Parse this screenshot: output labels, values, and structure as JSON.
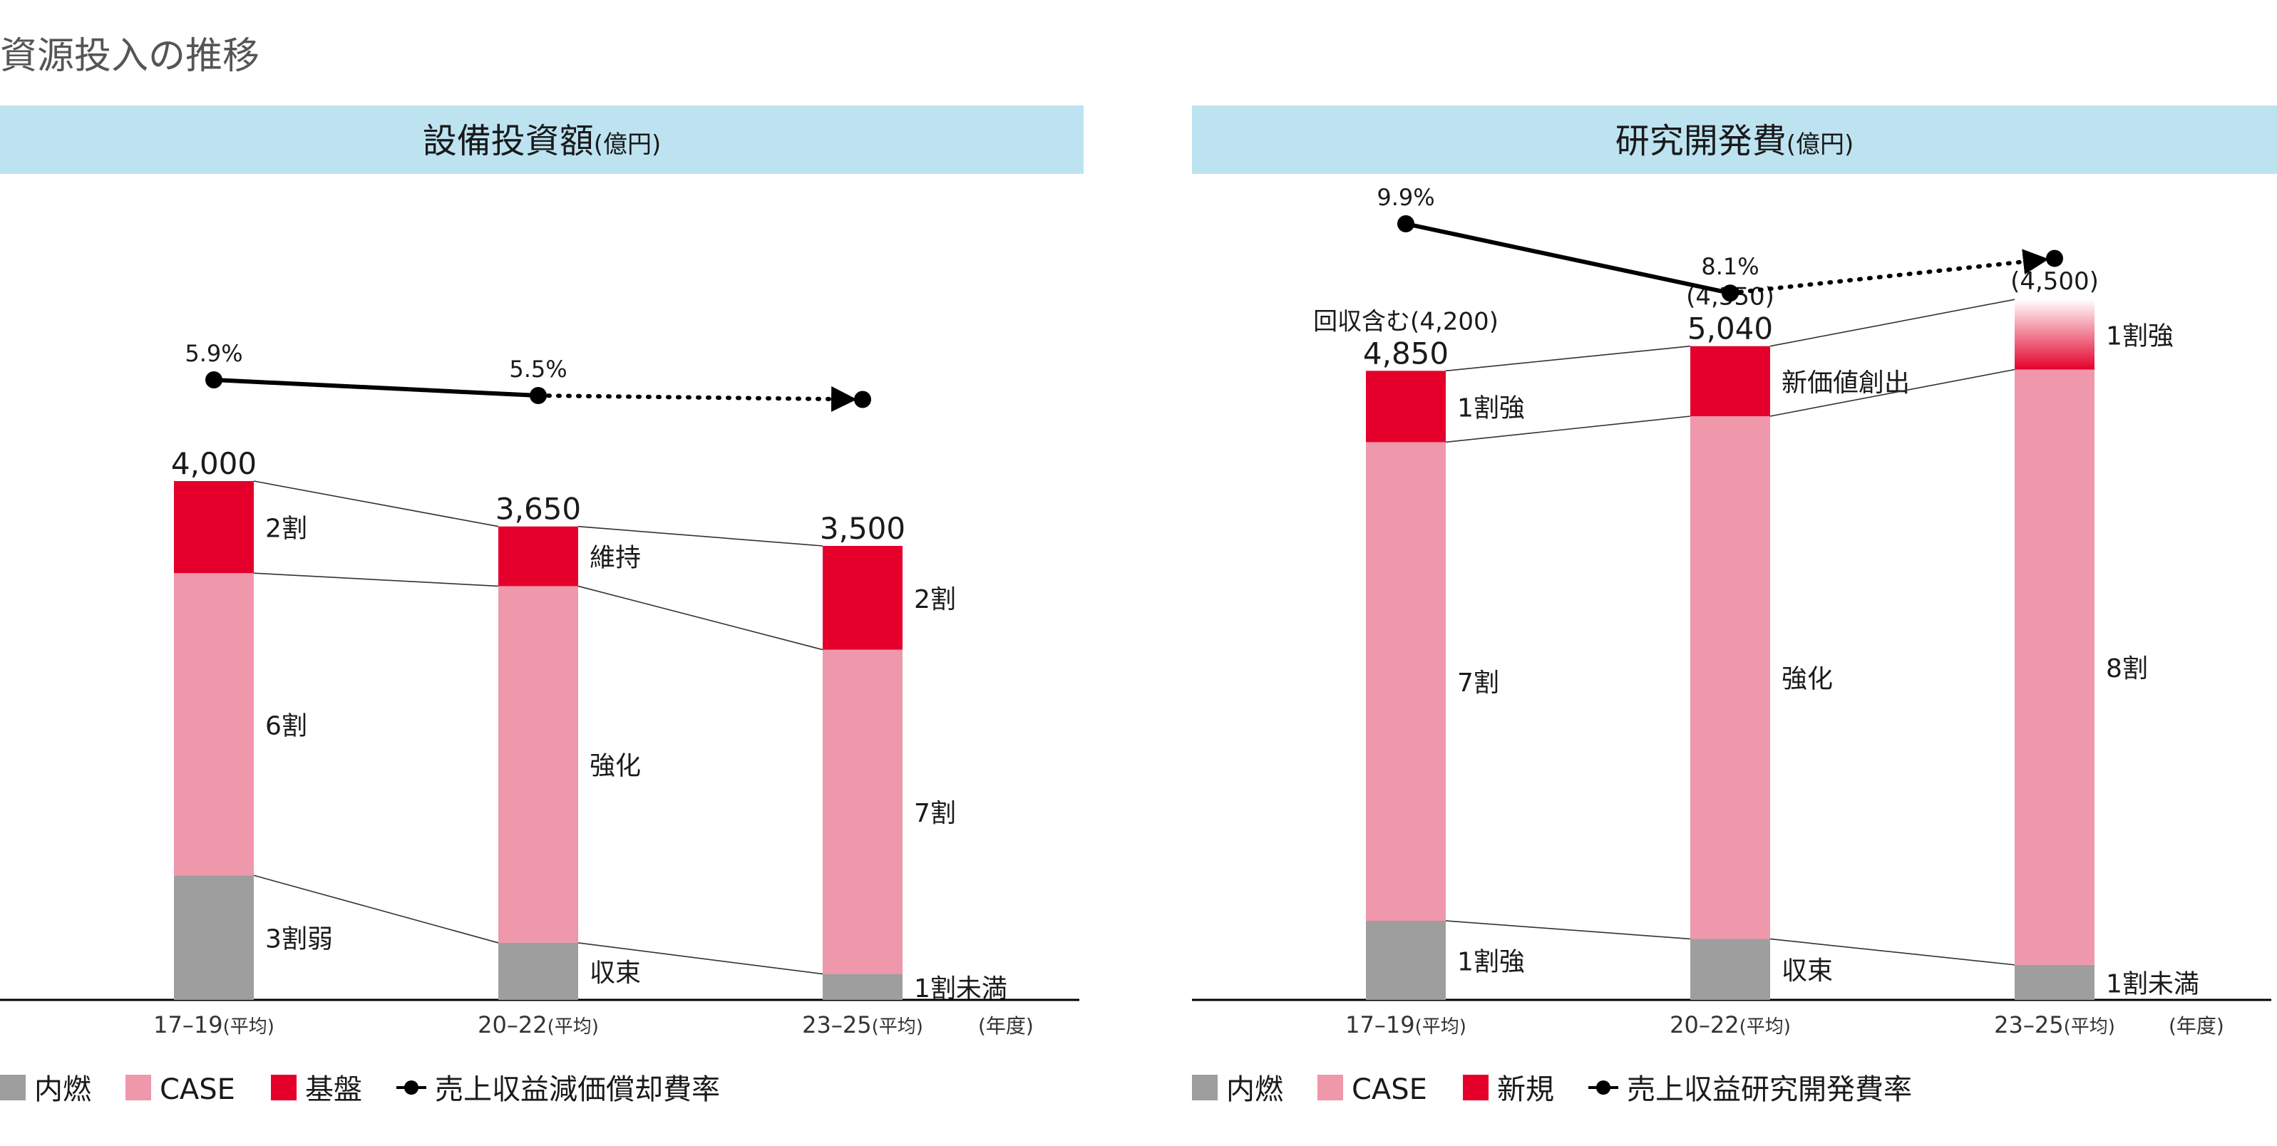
{
  "page_title": "資源投入の推移",
  "colors": {
    "header_bg": "#bde3f1",
    "engine": "#9e9e9e",
    "case": "#ef97ab",
    "base": "#e4002b",
    "line": "#000000"
  },
  "chart_data": [
    {
      "type": "bar",
      "title": "設備投資額",
      "unit": "(億円)",
      "year_label": "(年度)",
      "categories": [
        "17–19(平均)",
        "20–22(平均)",
        "23–25(平均)"
      ],
      "totals": [
        "4,000",
        "3,650",
        "3,500"
      ],
      "total_values": [
        4000,
        3650,
        3500
      ],
      "sub_totals": [
        "",
        "",
        ""
      ],
      "series": [
        {
          "name": "内燃",
          "values": [
            960,
            440,
            200
          ],
          "labels": [
            "3割弱",
            "収束",
            "1割未満"
          ]
        },
        {
          "name": "CASE",
          "values": [
            2330,
            2750,
            2500
          ],
          "labels": [
            "6割",
            "強化",
            "7割"
          ]
        },
        {
          "name": "基盤",
          "values": [
            710,
            460,
            800
          ],
          "labels": [
            "2割",
            "維持",
            "2割"
          ]
        }
      ],
      "line": {
        "name": "売上収益減価償却費率",
        "values": [
          5.9,
          5.5,
          null
        ],
        "labels": [
          "5.9%",
          "5.5%",
          ""
        ],
        "style": [
          "solid",
          "dotted"
        ],
        "last_point_level": 5.4
      },
      "legend": [
        "内燃",
        "CASE",
        "基盤",
        "売上収益減価償却費率"
      ],
      "legend_position": "bottom-left"
    },
    {
      "type": "bar",
      "title": "研究開発費",
      "unit": "(億円)",
      "year_label": "(年度)",
      "categories": [
        "17–19(平均)",
        "20–22(平均)",
        "23–25(平均)"
      ],
      "totals": [
        "4,850",
        "5,040",
        ""
      ],
      "total_values": [
        4850,
        5040,
        5400
      ],
      "sub_totals": [
        "回収含む(4,200)",
        "(4,350)",
        "(4,500)"
      ],
      "series": [
        {
          "name": "内燃",
          "values": [
            610,
            470,
            270
          ],
          "labels": [
            "1割強",
            "収束",
            "1割未満"
          ]
        },
        {
          "name": "新規",
          "values": [
            550,
            540,
            540
          ],
          "labels": [
            "1割強",
            "新価値創出",
            "1割強"
          ]
        },
        {
          "name": "CASE",
          "values": [
            3690,
            4030,
            4590
          ],
          "labels": [
            "7割",
            "強化",
            "8割"
          ]
        }
      ],
      "line": {
        "name": "売上収益研究開発費率",
        "values": [
          9.9,
          8.1,
          null
        ],
        "labels": [
          "9.9%",
          "8.1%",
          ""
        ],
        "style": [
          "solid",
          "dotted"
        ],
        "last_point_level": 9.0
      },
      "legend": [
        "内燃",
        "CASE",
        "新規",
        "売上収益研究開発費率"
      ],
      "legend_position": "bottom-left"
    }
  ]
}
